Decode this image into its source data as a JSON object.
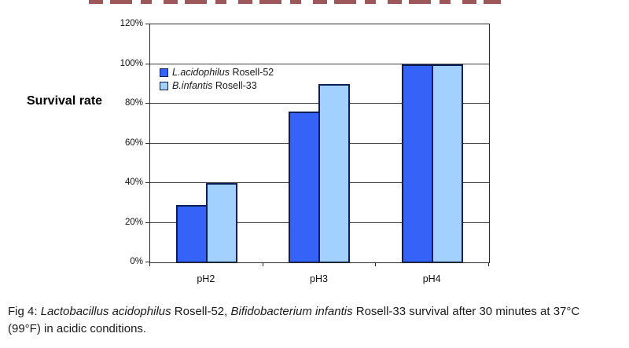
{
  "figure": {
    "y_axis_title": "Survival rate"
  },
  "chart_data": {
    "type": "bar",
    "categories": [
      "pH2",
      "pH3",
      "pH4"
    ],
    "series": [
      {
        "name": "L.acidophilus Rosell-52",
        "label_italic": "L.acidophilus",
        "label_regular": " Rosell-52",
        "color": "#3562f7",
        "values": [
          29,
          76,
          100
        ]
      },
      {
        "name": "B.infantis Rosell-33",
        "label_italic": "B.infantis",
        "label_regular": " Rosell-33",
        "color": "#a2d1ff",
        "values": [
          40,
          90,
          100
        ]
      }
    ],
    "title": "",
    "xlabel": "",
    "ylabel": "Survival rate",
    "ylim": [
      0,
      120
    ],
    "ytick_step": 20,
    "yticks": [
      "0%",
      "20%",
      "40%",
      "60%",
      "80%",
      "100%",
      "120%"
    ],
    "grid": true,
    "legend_position": "upper-left-inside"
  },
  "caption": {
    "parts": [
      {
        "text": "Fig 4: ",
        "italic": false
      },
      {
        "text": "Lactobacillus acidophilus",
        "italic": true
      },
      {
        "text": " Rosell-52, ",
        "italic": false
      },
      {
        "text": "Bifidobacterium infantis",
        "italic": true
      },
      {
        "text": " Rosell-33 survival after 30 minutes at 37°C\n(99°F) in acidic conditions.",
        "italic": false
      }
    ]
  },
  "colors": {
    "series1_fill": "#3562f7",
    "series2_fill": "#a2d1ff",
    "bar_border": "#0b1e55",
    "gridline": "#404040",
    "axis": "#2b2b2b",
    "title_remnant": "#7b2020",
    "background": "#ffffff",
    "text": "#1a1a1a"
  }
}
